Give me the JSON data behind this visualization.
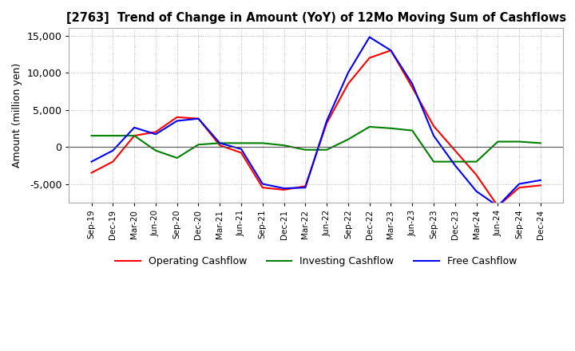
{
  "title": "[2763]  Trend of Change in Amount (YoY) of 12Mo Moving Sum of Cashflows",
  "ylabel": "Amount (million yen)",
  "ylim": [
    -7500,
    16000
  ],
  "yticks": [
    -5000,
    0,
    5000,
    10000,
    15000
  ],
  "background_color": "#ffffff",
  "grid_color": "#aaaaaa",
  "x_labels": [
    "Sep-19",
    "Dec-19",
    "Mar-20",
    "Jun-20",
    "Sep-20",
    "Dec-20",
    "Mar-21",
    "Jun-21",
    "Sep-21",
    "Dec-21",
    "Mar-22",
    "Jun-22",
    "Sep-22",
    "Dec-22",
    "Mar-23",
    "Jun-23",
    "Sep-23",
    "Dec-23",
    "Mar-24",
    "Jun-24",
    "Sep-24",
    "Dec-24"
  ],
  "operating": [
    -3500,
    -2000,
    1500,
    2000,
    4000,
    3800,
    200,
    -800,
    -5500,
    -5800,
    -5300,
    3200,
    8500,
    12000,
    13000,
    8000,
    2800,
    -500,
    -3800,
    -8000,
    -5500,
    -5200
  ],
  "investing": [
    1500,
    1500,
    1500,
    -500,
    -1500,
    300,
    500,
    500,
    500,
    200,
    -400,
    -400,
    1000,
    2700,
    2500,
    2200,
    -2000,
    -2000,
    -2000,
    700,
    700,
    500
  ],
  "free": [
    -2000,
    -500,
    2600,
    1700,
    3500,
    3800,
    500,
    -300,
    -5000,
    -5600,
    -5500,
    3500,
    10000,
    14800,
    13000,
    8500,
    1500,
    -2500,
    -6000,
    -8000,
    -5000,
    -4500
  ],
  "op_color": "#ff0000",
  "inv_color": "#008000",
  "free_color": "#0000ff",
  "legend_labels": [
    "Operating Cashflow",
    "Investing Cashflow",
    "Free Cashflow"
  ]
}
